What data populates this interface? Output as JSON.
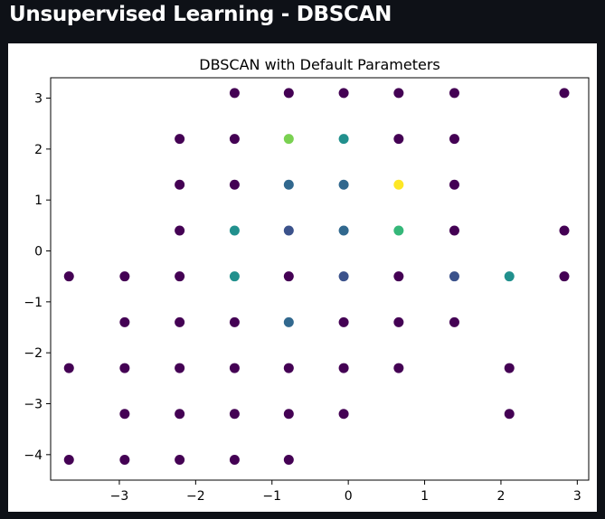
{
  "app": {
    "title": "Unsupervised Learning - DBSCAN"
  },
  "chart_data": {
    "type": "scatter",
    "title": "DBSCAN with Default Parameters",
    "xlabel": "",
    "ylabel": "",
    "xlim": [
      -3.9,
      3.15
    ],
    "ylim": [
      -4.5,
      3.4
    ],
    "xticks": [
      -3,
      -2,
      -1,
      0,
      1,
      2,
      3
    ],
    "yticks": [
      3,
      2,
      1,
      0,
      -1,
      -2,
      -3,
      -4
    ],
    "tick_labels_x": [
      "−3",
      "−2",
      "−1",
      "0",
      "1",
      "2",
      "3"
    ],
    "tick_labels_y": [
      "3",
      "2",
      "1",
      "0",
      "−1",
      "−2",
      "−3",
      "−4"
    ],
    "grid": false,
    "colormap": "viridis",
    "cluster_colors": {
      "noise": "#440154",
      "dark_blue": "#3b528b",
      "steel_blue": "#31688e",
      "teal": "#21908d",
      "green": "#35b779",
      "light_green": "#7ad151",
      "yellow": "#fde725"
    },
    "points": [
      {
        "x": -1.49,
        "y": 3.1,
        "c": "noise"
      },
      {
        "x": -0.78,
        "y": 3.1,
        "c": "noise"
      },
      {
        "x": -0.06,
        "y": 3.1,
        "c": "noise"
      },
      {
        "x": 0.66,
        "y": 3.1,
        "c": "noise"
      },
      {
        "x": 1.39,
        "y": 3.1,
        "c": "noise"
      },
      {
        "x": 2.83,
        "y": 3.1,
        "c": "noise"
      },
      {
        "x": -2.21,
        "y": 2.2,
        "c": "noise"
      },
      {
        "x": -1.49,
        "y": 2.2,
        "c": "noise"
      },
      {
        "x": -0.78,
        "y": 2.2,
        "c": "light_green"
      },
      {
        "x": -0.06,
        "y": 2.2,
        "c": "teal"
      },
      {
        "x": 0.66,
        "y": 2.2,
        "c": "noise"
      },
      {
        "x": 1.39,
        "y": 2.2,
        "c": "noise"
      },
      {
        "x": -2.21,
        "y": 1.3,
        "c": "noise"
      },
      {
        "x": -1.49,
        "y": 1.3,
        "c": "noise"
      },
      {
        "x": -0.78,
        "y": 1.3,
        "c": "steel_blue"
      },
      {
        "x": -0.06,
        "y": 1.3,
        "c": "steel_blue"
      },
      {
        "x": 0.66,
        "y": 1.3,
        "c": "yellow"
      },
      {
        "x": 1.39,
        "y": 1.3,
        "c": "noise"
      },
      {
        "x": -2.21,
        "y": 0.4,
        "c": "noise"
      },
      {
        "x": -1.49,
        "y": 0.4,
        "c": "teal"
      },
      {
        "x": -0.78,
        "y": 0.4,
        "c": "dark_blue"
      },
      {
        "x": -0.06,
        "y": 0.4,
        "c": "steel_blue"
      },
      {
        "x": 0.66,
        "y": 0.4,
        "c": "green"
      },
      {
        "x": 1.39,
        "y": 0.4,
        "c": "noise"
      },
      {
        "x": 2.83,
        "y": 0.4,
        "c": "noise"
      },
      {
        "x": -3.66,
        "y": -0.5,
        "c": "noise"
      },
      {
        "x": -2.93,
        "y": -0.5,
        "c": "noise"
      },
      {
        "x": -2.21,
        "y": -0.5,
        "c": "noise"
      },
      {
        "x": -1.49,
        "y": -0.5,
        "c": "teal"
      },
      {
        "x": -0.78,
        "y": -0.5,
        "c": "noise"
      },
      {
        "x": -0.06,
        "y": -0.5,
        "c": "dark_blue"
      },
      {
        "x": 0.66,
        "y": -0.5,
        "c": "noise"
      },
      {
        "x": 1.39,
        "y": -0.5,
        "c": "dark_blue"
      },
      {
        "x": 2.11,
        "y": -0.5,
        "c": "teal"
      },
      {
        "x": 2.83,
        "y": -0.5,
        "c": "noise"
      },
      {
        "x": -2.93,
        "y": -1.4,
        "c": "noise"
      },
      {
        "x": -2.21,
        "y": -1.4,
        "c": "noise"
      },
      {
        "x": -1.49,
        "y": -1.4,
        "c": "noise"
      },
      {
        "x": -0.78,
        "y": -1.4,
        "c": "steel_blue"
      },
      {
        "x": -0.06,
        "y": -1.4,
        "c": "noise"
      },
      {
        "x": 0.66,
        "y": -1.4,
        "c": "noise"
      },
      {
        "x": 1.39,
        "y": -1.4,
        "c": "noise"
      },
      {
        "x": -3.66,
        "y": -2.3,
        "c": "noise"
      },
      {
        "x": -2.93,
        "y": -2.3,
        "c": "noise"
      },
      {
        "x": -2.21,
        "y": -2.3,
        "c": "noise"
      },
      {
        "x": -1.49,
        "y": -2.3,
        "c": "noise"
      },
      {
        "x": -0.78,
        "y": -2.3,
        "c": "noise"
      },
      {
        "x": -0.06,
        "y": -2.3,
        "c": "noise"
      },
      {
        "x": 0.66,
        "y": -2.3,
        "c": "noise"
      },
      {
        "x": 2.11,
        "y": -2.3,
        "c": "noise"
      },
      {
        "x": -2.93,
        "y": -3.2,
        "c": "noise"
      },
      {
        "x": -2.21,
        "y": -3.2,
        "c": "noise"
      },
      {
        "x": -1.49,
        "y": -3.2,
        "c": "noise"
      },
      {
        "x": -0.78,
        "y": -3.2,
        "c": "noise"
      },
      {
        "x": -0.06,
        "y": -3.2,
        "c": "noise"
      },
      {
        "x": 2.11,
        "y": -3.2,
        "c": "noise"
      },
      {
        "x": -3.66,
        "y": -4.1,
        "c": "noise"
      },
      {
        "x": -2.93,
        "y": -4.1,
        "c": "noise"
      },
      {
        "x": -2.21,
        "y": -4.1,
        "c": "noise"
      },
      {
        "x": -1.49,
        "y": -4.1,
        "c": "noise"
      },
      {
        "x": -0.78,
        "y": -4.1,
        "c": "noise"
      }
    ]
  }
}
